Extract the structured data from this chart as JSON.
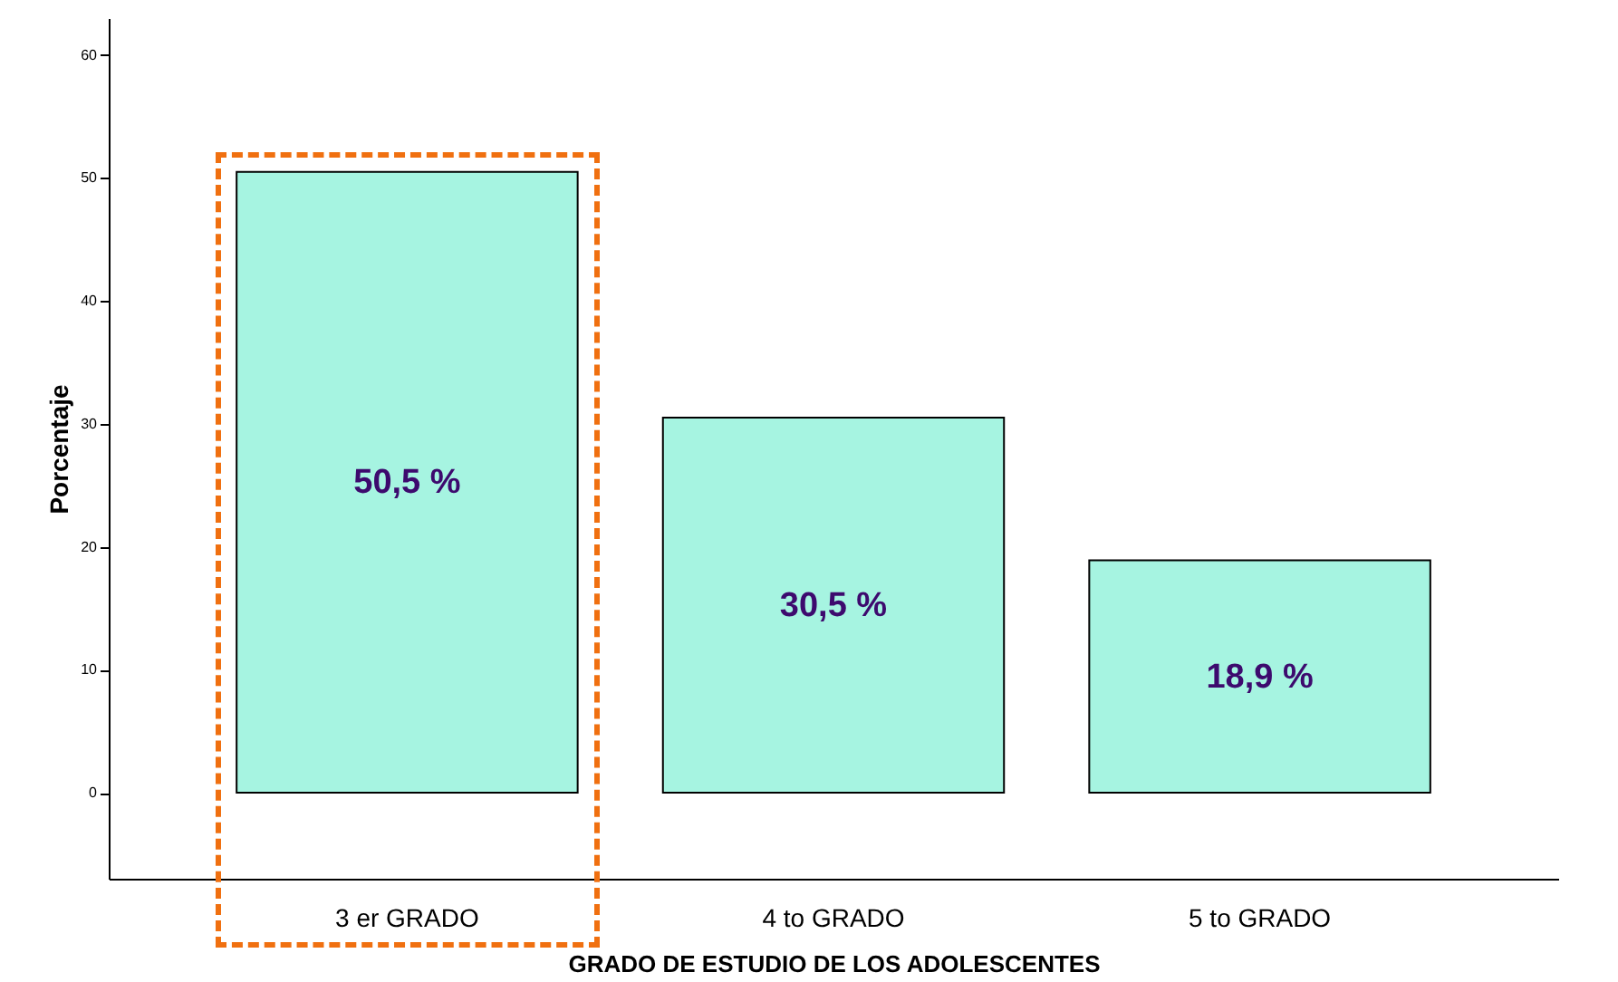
{
  "chart_data": {
    "type": "bar",
    "xlabel": "GRADO DE ESTUDIO DE LOS ADOLESCENTES",
    "ylabel": "Porcentaje",
    "categories": [
      "3 er GRADO",
      "4 to GRADO",
      "5 to GRADO"
    ],
    "values": [
      50.5,
      30.5,
      18.9
    ],
    "color": "#a6f4e1",
    "value_labels": [
      "50,5 %",
      "30,5 %",
      "18,9 %"
    ],
    "ylim": [
      -7,
      63
    ],
    "yticks": [
      0,
      10,
      20,
      30,
      40,
      50,
      60
    ],
    "grid": false
  }
}
